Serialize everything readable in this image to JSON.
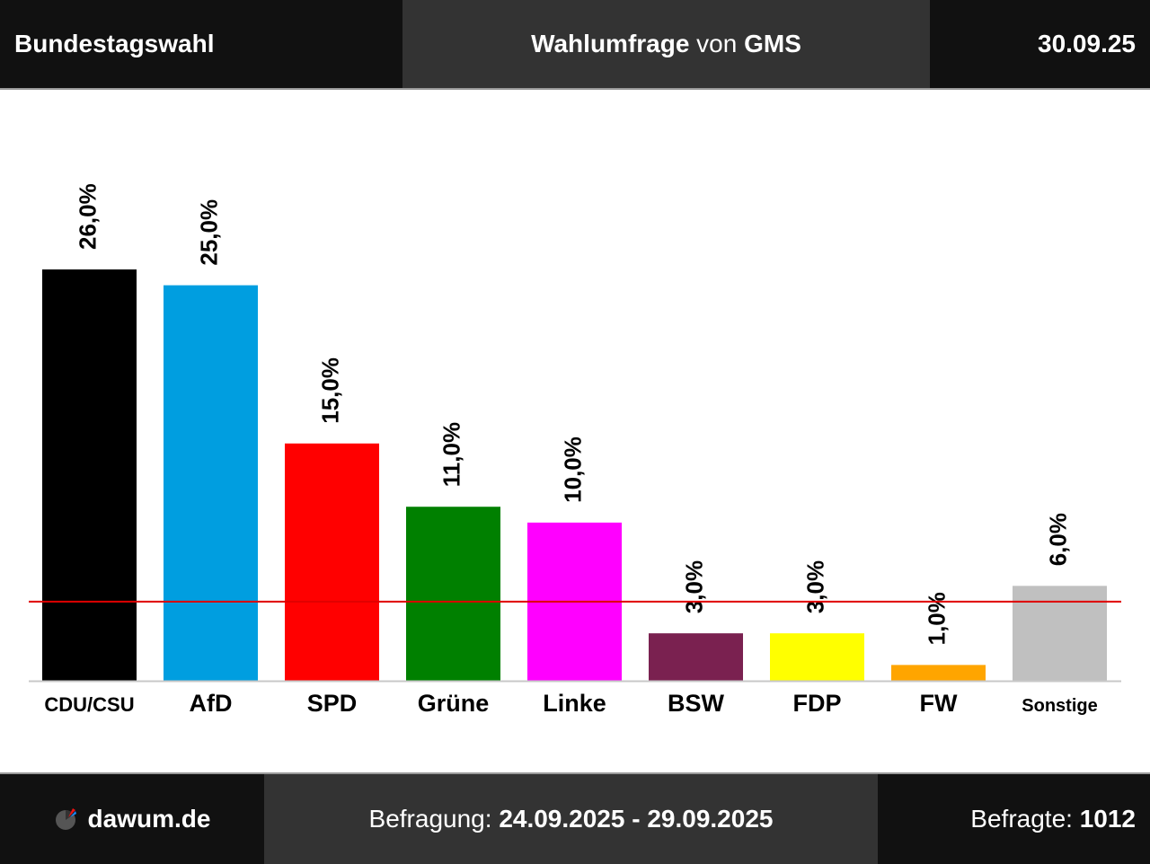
{
  "header": {
    "left": "Bundestagswahl",
    "title_bold_1": "Wahlumfrage",
    "title_plain": " von ",
    "title_bold_2": "GMS",
    "date": "30.09.25"
  },
  "footer": {
    "brand": "dawum.de",
    "period_label": "Befragung: ",
    "period_value": "24.09.2025 - 29.09.2025",
    "respondents_label": "Befragte: ",
    "respondents_value": "1012"
  },
  "colors": {
    "threshold_line": "#e00000",
    "baseline": "#c8c8c8"
  },
  "chart_data": {
    "type": "bar",
    "categories": [
      "CDU/CSU",
      "AfD",
      "SPD",
      "Grüne",
      "Linke",
      "BSW",
      "FDP",
      "FW",
      "Sonstige"
    ],
    "values": [
      26.0,
      25.0,
      15.0,
      11.0,
      10.0,
      3.0,
      3.0,
      1.0,
      6.0
    ],
    "value_labels": [
      "26,0%",
      "25,0%",
      "15,0%",
      "11,0%",
      "10,0%",
      "3,0%",
      "3,0%",
      "1,0%",
      "6,0%"
    ],
    "colors": [
      "#000000",
      "#009ee0",
      "#ff0000",
      "#008000",
      "#ff00ff",
      "#7a2150",
      "#ffff00",
      "#ffa500",
      "#c0c0c0"
    ],
    "threshold": 5,
    "ylim": [
      0,
      26
    ]
  }
}
